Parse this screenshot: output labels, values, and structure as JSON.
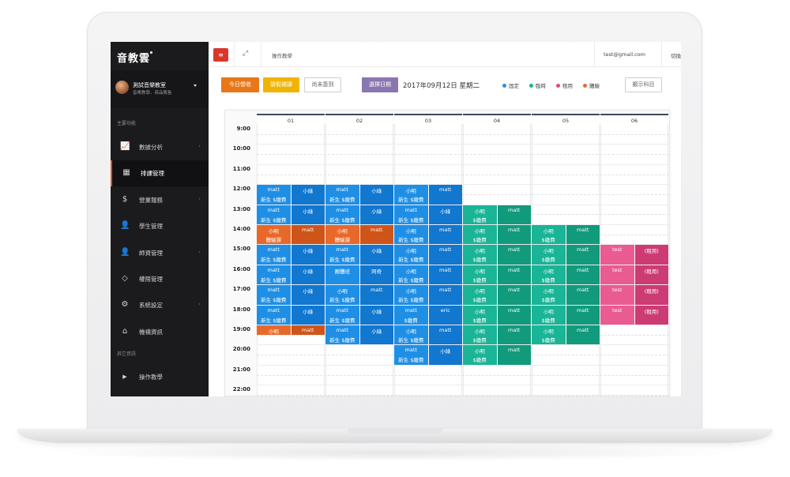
{
  "sidebar": {
    "brand": "音教雲",
    "profile_name": "測試音樂教室",
    "profile_sub": "音樂教學．商品販售",
    "section_main": "主要功能",
    "section_other": "其它資訊",
    "items": [
      {
        "label": "數據分析",
        "icon": "chart-line-icon",
        "glyph": "📈"
      },
      {
        "label": "排課管理",
        "icon": "calendar-icon",
        "glyph": "▦"
      },
      {
        "label": "營業報務",
        "icon": "dollar-icon",
        "glyph": "$"
      },
      {
        "label": "學生管理",
        "icon": "user-icon",
        "glyph": "👤"
      },
      {
        "label": "師資管理",
        "icon": "teacher-icon",
        "glyph": "👤"
      },
      {
        "label": "權限管理",
        "icon": "diamond-icon",
        "glyph": "◇"
      },
      {
        "label": "系統設定",
        "icon": "gear-icon",
        "glyph": "⚙"
      },
      {
        "label": "機構資訊",
        "icon": "home-icon",
        "glyph": "⌂"
      }
    ],
    "other_items": [
      {
        "label": "操作教學",
        "icon": "video-camera-icon",
        "glyph": "▶"
      }
    ]
  },
  "topbar": {
    "breadcrumb": "操作教學",
    "email": "test@gmail.com",
    "switch_label": "切換"
  },
  "toolbar": {
    "today_revenue": "今日營收",
    "leave_lessons": "請假補課",
    "not_signed": "尚未簽到",
    "select_date": "選擇日期",
    "date": "2017年09月12日 星期二",
    "show_subjects": "顯示科目"
  },
  "legend": [
    {
      "label": "固定",
      "color": "#2c8fe0"
    },
    {
      "label": "臨時",
      "color": "#18b38c"
    },
    {
      "label": "租用",
      "color": "#e0487a"
    },
    {
      "label": "體驗",
      "color": "#e8682a"
    }
  ],
  "colors": {
    "blue_a": "#1f8fe5",
    "blue_b": "#1177cf",
    "green_a": "#1ab496",
    "green_b": "#119a7c",
    "pink_a": "#ea5a93",
    "pink_b": "#cc3b74",
    "orange_a": "#e8682a",
    "orange_b": "#cf5419"
  },
  "calendar": {
    "rooms": [
      "01",
      "02",
      "03",
      "04",
      "05",
      "06"
    ],
    "times": [
      "9:00",
      "10:00",
      "11:00",
      "12:00",
      "13:00",
      "14:00",
      "15:00",
      "16:00",
      "17:00",
      "18:00",
      "19:00",
      "20:00",
      "21:00",
      "22:00"
    ],
    "bookings": [
      {
        "room": 0,
        "start": 3,
        "span": 1,
        "color": "blue",
        "left": [
          "matt",
          "新生 $繳費"
        ],
        "right": [
          "小綠",
          ""
        ]
      },
      {
        "room": 0,
        "start": 4,
        "span": 1,
        "color": "blue",
        "left": [
          "matt",
          "新生 $繳費"
        ],
        "right": [
          "小綠",
          ""
        ]
      },
      {
        "room": 0,
        "start": 5,
        "span": 1,
        "color": "orange",
        "left": [
          "小明",
          "體驗課"
        ],
        "right": [
          "matt",
          ""
        ]
      },
      {
        "room": 0,
        "start": 6,
        "span": 1,
        "color": "blue",
        "left": [
          "matt",
          "新生 $繳費"
        ],
        "right": [
          "小綠",
          ""
        ]
      },
      {
        "room": 0,
        "start": 7,
        "span": 1,
        "color": "blue",
        "left": [
          "matt",
          "新生 $繳費"
        ],
        "right": [
          "小綠",
          ""
        ]
      },
      {
        "room": 0,
        "start": 8,
        "span": 1,
        "color": "blue",
        "left": [
          "matt",
          "新生 $繳費"
        ],
        "right": [
          "小綠",
          ""
        ]
      },
      {
        "room": 0,
        "start": 9,
        "span": 1,
        "color": "blue",
        "left": [
          "matt",
          "新生 $繳費"
        ],
        "right": [
          "小綠",
          ""
        ]
      },
      {
        "room": 0,
        "start": 10,
        "span": 0.5,
        "color": "orange",
        "left": [
          "小明",
          ""
        ],
        "right": [
          "matt",
          ""
        ]
      },
      {
        "room": 1,
        "start": 3,
        "span": 1,
        "color": "blue",
        "left": [
          "matt",
          "新生 $繳費"
        ],
        "right": [
          "小綠",
          ""
        ]
      },
      {
        "room": 1,
        "start": 4,
        "span": 1,
        "color": "blue",
        "left": [
          "matt",
          "新生 $繳費"
        ],
        "right": [
          "小綠",
          ""
        ]
      },
      {
        "room": 1,
        "start": 5,
        "span": 1,
        "color": "orange",
        "left": [
          "小明",
          "體驗課"
        ],
        "right": [
          "matt",
          ""
        ]
      },
      {
        "room": 1,
        "start": 6,
        "span": 1,
        "color": "blue",
        "left": [
          "matt",
          "新生 $繳費"
        ],
        "right": [
          "小綠",
          ""
        ]
      },
      {
        "room": 1,
        "start": 7,
        "span": 1,
        "color": "blue",
        "left": [
          "團體班",
          ""
        ],
        "right": [
          "阿奇",
          ""
        ]
      },
      {
        "room": 1,
        "start": 8,
        "span": 1,
        "color": "blue",
        "left": [
          "小明",
          "新生 $繳費"
        ],
        "right": [
          "matt",
          ""
        ]
      },
      {
        "room": 1,
        "start": 9,
        "span": 1,
        "color": "blue",
        "left": [
          "matt",
          "新生 $繳費"
        ],
        "right": [
          "小綠",
          ""
        ]
      },
      {
        "room": 1,
        "start": 10,
        "span": 1,
        "color": "blue",
        "left": [
          "matt",
          "新生 $繳費"
        ],
        "right": [
          "小綠",
          ""
        ]
      },
      {
        "room": 2,
        "start": 3,
        "span": 1,
        "color": "blue",
        "left": [
          "小明",
          "新生 $繳費"
        ],
        "right": [
          "matt",
          ""
        ]
      },
      {
        "room": 2,
        "start": 4,
        "span": 1,
        "color": "blue",
        "left": [
          "matt",
          "新生 $繳費"
        ],
        "right": [
          "小綠",
          ""
        ]
      },
      {
        "room": 2,
        "start": 5,
        "span": 1,
        "color": "blue",
        "left": [
          "小明",
          "新生 $繳費"
        ],
        "right": [
          "matt",
          ""
        ]
      },
      {
        "room": 2,
        "start": 6,
        "span": 1,
        "color": "blue",
        "left": [
          "小明",
          "新生 $繳費"
        ],
        "right": [
          "matt",
          ""
        ]
      },
      {
        "room": 2,
        "start": 7,
        "span": 1,
        "color": "blue",
        "left": [
          "小明",
          "新生 $繳費"
        ],
        "right": [
          "matt",
          ""
        ]
      },
      {
        "room": 2,
        "start": 8,
        "span": 1,
        "color": "blue",
        "left": [
          "小明",
          "新生 $繳費"
        ],
        "right": [
          "matt",
          ""
        ]
      },
      {
        "room": 2,
        "start": 9,
        "span": 1,
        "color": "blue",
        "left": [
          "matt",
          "$繳費"
        ],
        "right": [
          "eric",
          ""
        ]
      },
      {
        "room": 2,
        "start": 10,
        "span": 1,
        "color": "blue",
        "left": [
          "小明",
          "新生 $繳費"
        ],
        "right": [
          "matt",
          ""
        ]
      },
      {
        "room": 2,
        "start": 11,
        "span": 1,
        "color": "blue",
        "left": [
          "matt",
          "新生 $繳費"
        ],
        "right": [
          "小綠",
          ""
        ]
      },
      {
        "room": 3,
        "start": 4,
        "span": 1,
        "color": "green",
        "left": [
          "小明",
          "$繳費"
        ],
        "right": [
          "matt",
          ""
        ]
      },
      {
        "room": 3,
        "start": 5,
        "span": 1,
        "color": "green",
        "left": [
          "小明",
          "$繳費"
        ],
        "right": [
          "matt",
          ""
        ]
      },
      {
        "room": 3,
        "start": 6,
        "span": 1,
        "color": "green",
        "left": [
          "小明",
          "$繳費"
        ],
        "right": [
          "matt",
          ""
        ]
      },
      {
        "room": 3,
        "start": 7,
        "span": 1,
        "color": "green",
        "left": [
          "小明",
          "$繳費"
        ],
        "right": [
          "matt",
          ""
        ]
      },
      {
        "room": 3,
        "start": 8,
        "span": 1,
        "color": "green",
        "left": [
          "小明",
          "$繳費"
        ],
        "right": [
          "matt",
          ""
        ]
      },
      {
        "room": 3,
        "start": 9,
        "span": 1,
        "color": "green",
        "left": [
          "小明",
          "$繳費"
        ],
        "right": [
          "matt",
          ""
        ]
      },
      {
        "room": 3,
        "start": 10,
        "span": 1,
        "color": "green",
        "left": [
          "小明",
          "$繳費"
        ],
        "right": [
          "matt",
          ""
        ]
      },
      {
        "room": 3,
        "start": 11,
        "span": 1,
        "color": "green",
        "left": [
          "小明",
          "$繳費"
        ],
        "right": [
          "matt",
          ""
        ]
      },
      {
        "room": 4,
        "start": 5,
        "span": 1,
        "color": "green",
        "left": [
          "小明",
          "$繳費"
        ],
        "right": [
          "matt",
          ""
        ]
      },
      {
        "room": 4,
        "start": 6,
        "span": 1,
        "color": "green",
        "left": [
          "小明",
          "$繳費"
        ],
        "right": [
          "matt",
          ""
        ]
      },
      {
        "room": 4,
        "start": 7,
        "span": 1,
        "color": "green",
        "left": [
          "小明",
          "$繳費"
        ],
        "right": [
          "matt",
          ""
        ]
      },
      {
        "room": 4,
        "start": 8,
        "span": 1,
        "color": "green",
        "left": [
          "小明",
          "$繳費"
        ],
        "right": [
          "matt",
          ""
        ]
      },
      {
        "room": 4,
        "start": 9,
        "span": 1,
        "color": "green",
        "left": [
          "小明",
          "$繳費"
        ],
        "right": [
          "matt",
          ""
        ]
      },
      {
        "room": 4,
        "start": 10,
        "span": 1,
        "color": "green",
        "left": [
          "小明",
          "$繳費"
        ],
        "right": [
          "matt",
          ""
        ]
      },
      {
        "room": 5,
        "start": 6,
        "span": 1,
        "color": "pink",
        "left": [
          "test",
          ""
        ],
        "right": [
          "(租用)",
          ""
        ]
      },
      {
        "room": 5,
        "start": 7,
        "span": 1,
        "color": "pink",
        "left": [
          "test",
          ""
        ],
        "right": [
          "(租用)",
          ""
        ]
      },
      {
        "room": 5,
        "start": 8,
        "span": 1,
        "color": "pink",
        "left": [
          "test",
          ""
        ],
        "right": [
          "(租用)",
          ""
        ]
      },
      {
        "room": 5,
        "start": 9,
        "span": 1,
        "color": "pink",
        "left": [
          "test",
          ""
        ],
        "right": [
          "(租用)",
          ""
        ]
      }
    ]
  }
}
